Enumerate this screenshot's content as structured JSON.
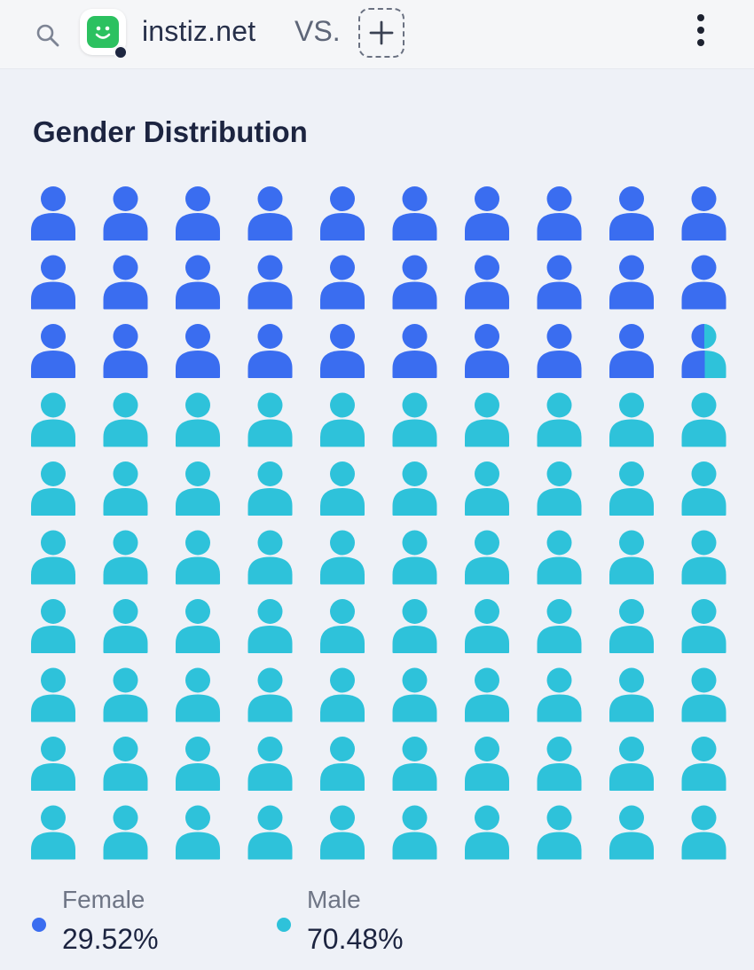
{
  "header": {
    "site_name": "instiz.net",
    "vs_label": "VS.",
    "icons": [
      "search-icon",
      "smiley-logo-icon",
      "plus-icon",
      "more-vertical-icon"
    ]
  },
  "chart_data": {
    "type": "waffle",
    "title": "Gender Distribution",
    "grid": {
      "rows": 10,
      "cols": 10
    },
    "series": [
      {
        "name": "Female",
        "value": 29.52,
        "value_label": "29.52%",
        "color": "#3a6df0"
      },
      {
        "name": "Male",
        "value": 70.48,
        "value_label": "70.48%",
        "color": "#2ec2da"
      }
    ]
  }
}
